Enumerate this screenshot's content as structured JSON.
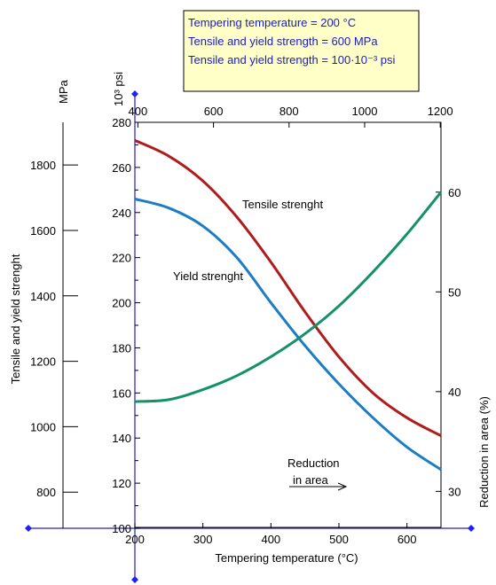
{
  "chart_data": {
    "type": "line",
    "info_box": {
      "lines": [
        "Tempering temperature  = 200 °C",
        "Tensile and yield strength = 600 MPa",
        "Tensile and yield strength = 100·10⁻³ psi"
      ]
    },
    "x_axis": {
      "label": "Tempering temperature (°C)",
      "range": [
        200,
        650
      ],
      "ticks": [
        200,
        300,
        400,
        500,
        600
      ]
    },
    "x_top_axis": {
      "ticks": [
        400,
        600,
        800,
        1000,
        1200
      ],
      "range": [
        392,
        1202
      ]
    },
    "y_psi_axis": {
      "label": "10³ psi",
      "range": [
        100,
        280
      ],
      "ticks": [
        100,
        120,
        140,
        160,
        180,
        200,
        220,
        240,
        260,
        280
      ]
    },
    "y_mpa_axis": {
      "label": "MPa",
      "title": "Tensile and yield strenght",
      "range": [
        689.5,
        1930.5
      ],
      "ticks": [
        800,
        1000,
        1200,
        1400,
        1600,
        1800
      ]
    },
    "y_right_axis": {
      "label": "Reduction in area (%)",
      "range": [
        26.3,
        67
      ],
      "ticks": [
        30,
        40,
        50,
        60
      ]
    },
    "series": [
      {
        "name": "Tensile strenght",
        "color": "#b01c1c",
        "axis": "psi",
        "x": [
          200,
          250,
          300,
          350,
          400,
          450,
          500,
          550,
          600,
          650
        ],
        "y": [
          272,
          265,
          254,
          238,
          218,
          196,
          176,
          160,
          149,
          141
        ]
      },
      {
        "name": "Yield strenght",
        "color": "#1d7dc4",
        "axis": "psi",
        "x": [
          200,
          250,
          300,
          350,
          400,
          450,
          500,
          550,
          600,
          650
        ],
        "y": [
          246,
          242,
          234,
          220,
          200,
          181,
          164,
          149,
          136,
          126
        ]
      },
      {
        "name": "Reduction\nin area",
        "color": "#14916a",
        "axis": "reduction",
        "x": [
          200,
          250,
          300,
          350,
          400,
          450,
          500,
          550,
          600,
          650
        ],
        "y": [
          39,
          39.2,
          40.2,
          41.6,
          43.5,
          45.8,
          48.6,
          52,
          55.8,
          60
        ]
      }
    ],
    "labels": {
      "tensile": "Tensile strenght",
      "yield": "Yield strenght",
      "reduction_1": "Reduction",
      "reduction_2": "in area"
    }
  }
}
